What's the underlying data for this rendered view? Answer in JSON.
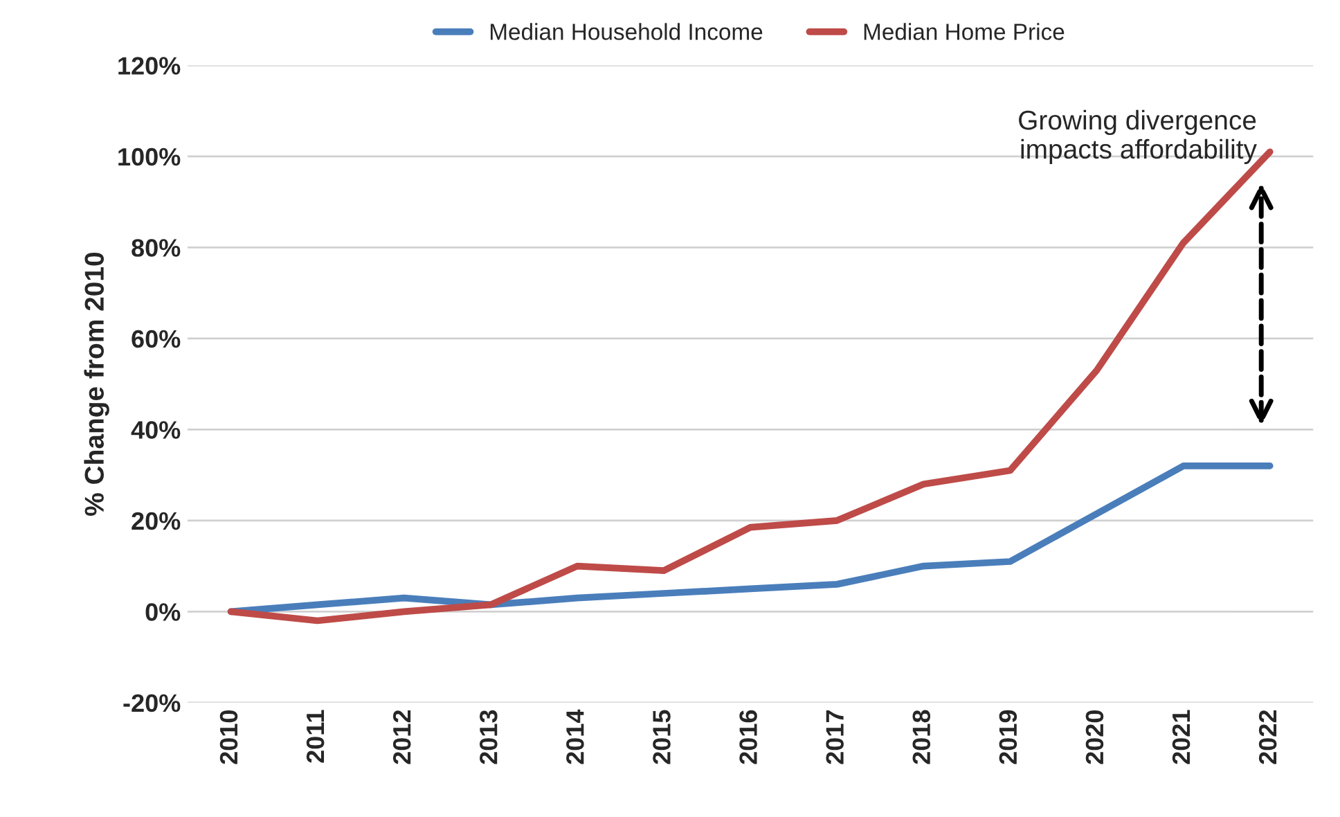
{
  "chart_data": {
    "type": "line",
    "ylabel": "% Change from 2010",
    "categories": [
      "2010",
      "2011",
      "2012",
      "2013",
      "2014",
      "2015",
      "2016",
      "2017",
      "2018",
      "2019",
      "2020",
      "2021",
      "2022"
    ],
    "series": [
      {
        "name": "Median Household Income",
        "color": "#4a7ebb",
        "values": [
          0,
          1.5,
          3,
          1.5,
          3,
          4,
          5,
          6,
          10,
          11,
          21.5,
          32,
          32
        ]
      },
      {
        "name": "Median Home Price",
        "color": "#be4b48",
        "values": [
          0,
          -2,
          0,
          1.5,
          10,
          9,
          18.5,
          20,
          28,
          31,
          53,
          81,
          101
        ]
      }
    ],
    "ylim": [
      -20,
      120
    ],
    "yticks": [
      {
        "value": -20,
        "label": "-20%"
      },
      {
        "value": 0,
        "label": "0%"
      },
      {
        "value": 20,
        "label": "20%"
      },
      {
        "value": 40,
        "label": "40%"
      },
      {
        "value": 60,
        "label": "60%"
      },
      {
        "value": 80,
        "label": "80%"
      },
      {
        "value": 100,
        "label": "100%"
      },
      {
        "value": 120,
        "label": "120%"
      }
    ],
    "grid": "y",
    "legend": "top",
    "marker": "none",
    "line_style": "solid",
    "annotations": [
      "Growing divergence\nimpacts affordability"
    ]
  }
}
